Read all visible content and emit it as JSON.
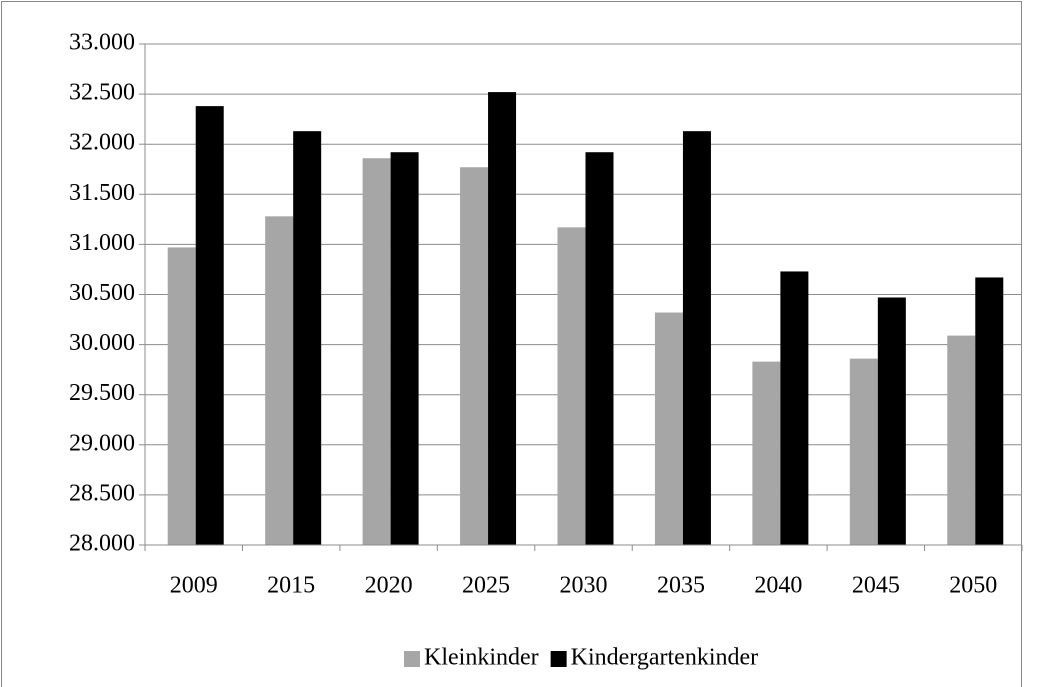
{
  "chart_data": {
    "type": "bar",
    "categories": [
      "2009",
      "2015",
      "2020",
      "2025",
      "2030",
      "2035",
      "2040",
      "2045",
      "2050"
    ],
    "series": [
      {
        "name": "Kleinkinder",
        "color": "#a6a6a6",
        "values": [
          30970,
          31280,
          31860,
          31770,
          31170,
          30320,
          29830,
          29860,
          30090
        ]
      },
      {
        "name": "Kindergartenkinder",
        "color": "#000000",
        "values": [
          32380,
          32130,
          31920,
          32520,
          31920,
          32130,
          30730,
          30470,
          30670
        ]
      }
    ],
    "ylim": [
      28000,
      33000
    ],
    "yticks": [
      {
        "value": 28000,
        "label": "28.000"
      },
      {
        "value": 28500,
        "label": "28.500"
      },
      {
        "value": 29000,
        "label": "29.000"
      },
      {
        "value": 29500,
        "label": "29.500"
      },
      {
        "value": 30000,
        "label": "30.000"
      },
      {
        "value": 30500,
        "label": "30.500"
      },
      {
        "value": 31000,
        "label": "31.000"
      },
      {
        "value": 31500,
        "label": "31.500"
      },
      {
        "value": 32000,
        "label": "32.000"
      },
      {
        "value": 32500,
        "label": "32.500"
      },
      {
        "value": 33000,
        "label": "33.000"
      }
    ],
    "grid": true,
    "legend": "bottom"
  }
}
